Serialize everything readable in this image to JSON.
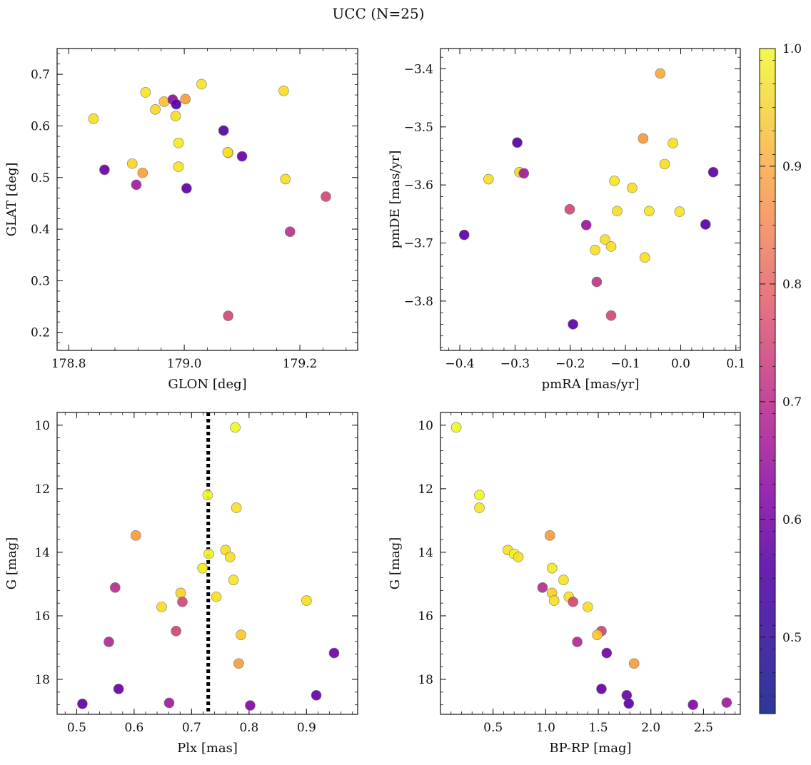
{
  "figure": {
    "title": "UCC (N=25)"
  },
  "colorbar": {
    "colormap": "plasma",
    "vmin": 0.435,
    "vmax": 1.0,
    "ticks": [
      0.5,
      0.6,
      0.7,
      0.8,
      0.9,
      1.0
    ],
    "tick_labels": [
      "0.5",
      "0.6",
      "0.7",
      "0.8",
      "0.9",
      "1.0"
    ]
  },
  "chart_data": [
    {
      "type": "scatter",
      "id": "glon-glat",
      "title": "",
      "xlabel": "GLON [deg]",
      "ylabel": "GLAT [deg]",
      "xlim": [
        178.78,
        179.3
      ],
      "ylim": [
        0.165,
        0.75
      ],
      "y_inverted": false,
      "xticks": [
        178.8,
        179.0,
        179.2
      ],
      "xtick_labels": [
        "178.8",
        "179.0",
        "179.2"
      ],
      "yticks": [
        0.2,
        0.3,
        0.4,
        0.5,
        0.6,
        0.7
      ],
      "ytick_labels": [
        "0.2",
        "0.3",
        "0.4",
        "0.5",
        "0.6",
        "0.7"
      ],
      "points": [
        {
          "x": 178.843,
          "y": 0.614,
          "c": 0.96
        },
        {
          "x": 178.933,
          "y": 0.665,
          "c": 0.97
        },
        {
          "x": 178.965,
          "y": 0.647,
          "c": 0.92
        },
        {
          "x": 178.95,
          "y": 0.632,
          "c": 0.95
        },
        {
          "x": 178.98,
          "y": 0.651,
          "c": 0.57
        },
        {
          "x": 178.986,
          "y": 0.642,
          "c": 0.48
        },
        {
          "x": 179.002,
          "y": 0.652,
          "c": 0.86
        },
        {
          "x": 178.985,
          "y": 0.619,
          "c": 0.96
        },
        {
          "x": 179.03,
          "y": 0.681,
          "c": 0.97
        },
        {
          "x": 178.99,
          "y": 0.567,
          "c": 0.98
        },
        {
          "x": 178.91,
          "y": 0.527,
          "c": 0.95
        },
        {
          "x": 178.99,
          "y": 0.521,
          "c": 0.97
        },
        {
          "x": 178.862,
          "y": 0.515,
          "c": 0.51
        },
        {
          "x": 178.928,
          "y": 0.509,
          "c": 0.87
        },
        {
          "x": 178.917,
          "y": 0.486,
          "c": 0.6
        },
        {
          "x": 179.004,
          "y": 0.479,
          "c": 0.49
        },
        {
          "x": 179.068,
          "y": 0.591,
          "c": 0.48
        },
        {
          "x": 179.076,
          "y": 0.548,
          "c": 1.0
        },
        {
          "x": 179.075,
          "y": 0.549,
          "c": 0.96
        },
        {
          "x": 179.1,
          "y": 0.541,
          "c": 0.51
        },
        {
          "x": 179.172,
          "y": 0.668,
          "c": 0.96
        },
        {
          "x": 179.175,
          "y": 0.497,
          "c": 0.96
        },
        {
          "x": 179.245,
          "y": 0.463,
          "c": 0.7
        },
        {
          "x": 179.183,
          "y": 0.395,
          "c": 0.65
        },
        {
          "x": 179.076,
          "y": 0.232,
          "c": 0.7
        }
      ]
    },
    {
      "type": "scatter",
      "id": "pmra-pmde",
      "title": "",
      "xlabel": "pmRA [mas/yr]",
      "ylabel": "pmDE [mas/yr]",
      "xlim": [
        -0.435,
        0.108
      ],
      "ylim": [
        -3.885,
        -3.365
      ],
      "y_inverted": false,
      "xticks": [
        -0.4,
        -0.3,
        -0.2,
        -0.1,
        0.0,
        0.1
      ],
      "xtick_labels": [
        "−0.4",
        "−0.3",
        "−0.2",
        "−0.1",
        "0.0",
        "0.1"
      ],
      "yticks": [
        -3.8,
        -3.7,
        -3.6,
        -3.5,
        -3.4
      ],
      "ytick_labels": [
        "−3.8",
        "−3.7",
        "−3.6",
        "−3.5",
        "−3.4"
      ],
      "points": [
        {
          "x": -0.392,
          "y": -3.686,
          "c": 0.49
        },
        {
          "x": -0.348,
          "y": -3.59,
          "c": 0.96
        },
        {
          "x": -0.296,
          "y": -3.527,
          "c": 0.48
        },
        {
          "x": -0.292,
          "y": -3.578,
          "c": 0.95
        },
        {
          "x": -0.284,
          "y": -3.58,
          "c": 0.6
        },
        {
          "x": -0.201,
          "y": -3.642,
          "c": 0.7
        },
        {
          "x": -0.195,
          "y": -3.84,
          "c": 0.49
        },
        {
          "x": -0.171,
          "y": -3.669,
          "c": 0.59
        },
        {
          "x": -0.155,
          "y": -3.712,
          "c": 0.96
        },
        {
          "x": -0.152,
          "y": -3.767,
          "c": 0.66
        },
        {
          "x": -0.137,
          "y": -3.694,
          "c": 0.96
        },
        {
          "x": -0.126,
          "y": -3.706,
          "c": 0.96
        },
        {
          "x": -0.126,
          "y": -3.825,
          "c": 0.7
        },
        {
          "x": -0.12,
          "y": -3.593,
          "c": 0.97
        },
        {
          "x": -0.115,
          "y": -3.645,
          "c": 0.96
        },
        {
          "x": -0.088,
          "y": -3.605,
          "c": 0.96
        },
        {
          "x": -0.068,
          "y": -3.52,
          "c": 0.85
        },
        {
          "x": -0.065,
          "y": -3.725,
          "c": 0.96
        },
        {
          "x": -0.057,
          "y": -3.645,
          "c": 0.97
        },
        {
          "x": -0.037,
          "y": -3.408,
          "c": 0.88
        },
        {
          "x": -0.029,
          "y": -3.564,
          "c": 0.96
        },
        {
          "x": -0.014,
          "y": -3.528,
          "c": 0.96
        },
        {
          "x": -0.002,
          "y": -3.646,
          "c": 0.97
        },
        {
          "x": 0.045,
          "y": -3.668,
          "c": 0.48
        },
        {
          "x": 0.059,
          "y": -3.578,
          "c": 0.49
        }
      ]
    },
    {
      "type": "scatter",
      "id": "plx-g",
      "title": "",
      "xlabel": "Plx [mas]",
      "ylabel": "G [mag]",
      "xlim": [
        0.466,
        0.989
      ],
      "ylim": [
        19.1,
        9.6
      ],
      "y_inverted": true,
      "xticks": [
        0.5,
        0.6,
        0.7,
        0.8,
        0.9
      ],
      "xtick_labels": [
        "0.5",
        "0.6",
        "0.7",
        "0.8",
        "0.9"
      ],
      "yticks": [
        10,
        12,
        14,
        16,
        18
      ],
      "ytick_labels": [
        "10",
        "12",
        "14",
        "16",
        "18"
      ],
      "vline": {
        "x": 0.729,
        "style": "dotted"
      },
      "points": [
        {
          "x": 0.776,
          "y": 10.07,
          "c": 1.0
        },
        {
          "x": 0.728,
          "y": 12.2,
          "c": 1.0
        },
        {
          "x": 0.778,
          "y": 12.6,
          "c": 0.97
        },
        {
          "x": 0.603,
          "y": 13.47,
          "c": 0.86
        },
        {
          "x": 0.759,
          "y": 13.93,
          "c": 0.96
        },
        {
          "x": 0.73,
          "y": 14.05,
          "c": 0.99
        },
        {
          "x": 0.767,
          "y": 14.15,
          "c": 0.96
        },
        {
          "x": 0.719,
          "y": 14.5,
          "c": 0.98
        },
        {
          "x": 0.773,
          "y": 14.87,
          "c": 0.97
        },
        {
          "x": 0.567,
          "y": 15.11,
          "c": 0.64
        },
        {
          "x": 0.681,
          "y": 15.28,
          "c": 0.94
        },
        {
          "x": 0.743,
          "y": 15.4,
          "c": 0.96
        },
        {
          "x": 0.684,
          "y": 15.56,
          "c": 0.7
        },
        {
          "x": 0.9,
          "y": 15.52,
          "c": 0.96
        },
        {
          "x": 0.648,
          "y": 15.72,
          "c": 0.96
        },
        {
          "x": 0.673,
          "y": 16.48,
          "c": 0.69
        },
        {
          "x": 0.786,
          "y": 16.6,
          "c": 0.93
        },
        {
          "x": 0.556,
          "y": 16.82,
          "c": 0.63
        },
        {
          "x": 0.948,
          "y": 17.17,
          "c": 0.52
        },
        {
          "x": 0.782,
          "y": 17.5,
          "c": 0.86
        },
        {
          "x": 0.573,
          "y": 18.3,
          "c": 0.5
        },
        {
          "x": 0.917,
          "y": 18.5,
          "c": 0.51
        },
        {
          "x": 0.51,
          "y": 18.77,
          "c": 0.49
        },
        {
          "x": 0.661,
          "y": 18.74,
          "c": 0.6
        },
        {
          "x": 0.802,
          "y": 18.82,
          "c": 0.55
        }
      ]
    },
    {
      "type": "scatter",
      "id": "bprp-g",
      "title": "",
      "xlabel": "BP-RP [mag]",
      "ylabel": "G [mag]",
      "xlim": [
        0.0,
        2.85
      ],
      "ylim": [
        19.1,
        9.6
      ],
      "y_inverted": true,
      "xticks": [
        0.5,
        1.0,
        1.5,
        2.0,
        2.5
      ],
      "xtick_labels": [
        "0.5",
        "1.0",
        "1.5",
        "2.0",
        "2.5"
      ],
      "yticks": [
        10,
        12,
        14,
        16,
        18
      ],
      "ytick_labels": [
        "10",
        "12",
        "14",
        "16",
        "18"
      ],
      "points": [
        {
          "x": 0.15,
          "y": 10.07,
          "c": 1.0
        },
        {
          "x": 0.37,
          "y": 12.2,
          "c": 1.0
        },
        {
          "x": 0.37,
          "y": 12.6,
          "c": 0.97
        },
        {
          "x": 1.04,
          "y": 13.47,
          "c": 0.86
        },
        {
          "x": 0.64,
          "y": 13.93,
          "c": 0.96
        },
        {
          "x": 0.7,
          "y": 14.05,
          "c": 0.99
        },
        {
          "x": 0.74,
          "y": 14.15,
          "c": 0.96
        },
        {
          "x": 1.06,
          "y": 14.5,
          "c": 0.98
        },
        {
          "x": 1.17,
          "y": 14.87,
          "c": 0.97
        },
        {
          "x": 0.97,
          "y": 15.11,
          "c": 0.64
        },
        {
          "x": 1.06,
          "y": 15.28,
          "c": 0.94
        },
        {
          "x": 1.22,
          "y": 15.4,
          "c": 0.96
        },
        {
          "x": 1.26,
          "y": 15.56,
          "c": 0.7
        },
        {
          "x": 1.08,
          "y": 15.52,
          "c": 0.96
        },
        {
          "x": 1.4,
          "y": 15.72,
          "c": 0.96
        },
        {
          "x": 1.53,
          "y": 16.48,
          "c": 0.69
        },
        {
          "x": 1.49,
          "y": 16.6,
          "c": 0.93
        },
        {
          "x": 1.3,
          "y": 16.82,
          "c": 0.63
        },
        {
          "x": 1.58,
          "y": 17.17,
          "c": 0.52
        },
        {
          "x": 1.84,
          "y": 17.5,
          "c": 0.86
        },
        {
          "x": 1.53,
          "y": 18.3,
          "c": 0.5
        },
        {
          "x": 1.77,
          "y": 18.5,
          "c": 0.51
        },
        {
          "x": 1.79,
          "y": 18.76,
          "c": 0.49
        },
        {
          "x": 2.72,
          "y": 18.73,
          "c": 0.6
        },
        {
          "x": 2.4,
          "y": 18.8,
          "c": 0.55
        }
      ]
    }
  ]
}
